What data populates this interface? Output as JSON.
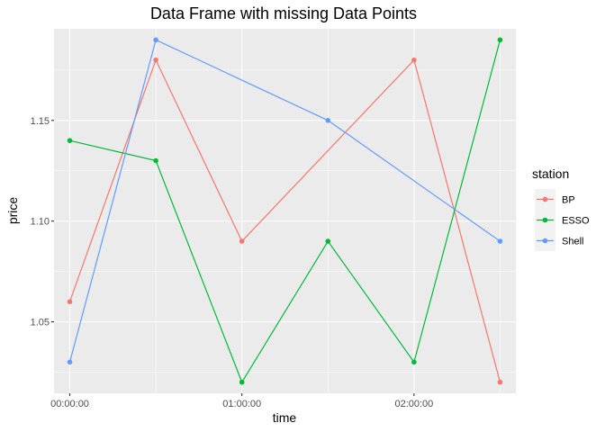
{
  "chart_data": {
    "type": "line",
    "title": "Data Frame with missing Data Points",
    "xlabel": "time",
    "ylabel": "price",
    "x_ticks": [
      "00:00:00",
      "01:00:00",
      "02:00:00"
    ],
    "x_tick_values": [
      "00:00:00",
      "01:00:00",
      "02:00:00"
    ],
    "y_ticks": [
      "1.05",
      "1.10",
      "1.15"
    ],
    "y_tick_values": [
      1.05,
      1.1,
      1.15
    ],
    "xlim": [
      "23:54:30",
      "02:35:30"
    ],
    "ylim": [
      1.0145,
      1.1955
    ],
    "grid": true,
    "legend": {
      "title": "station",
      "position": "right"
    },
    "series": [
      {
        "name": "BP",
        "color": "#F8766D",
        "points": [
          {
            "x": "00:00:00",
            "y": 1.06
          },
          {
            "x": "00:30:00",
            "y": 1.18
          },
          {
            "x": "01:00:00",
            "y": 1.09
          },
          {
            "x": "02:00:00",
            "y": 1.18
          },
          {
            "x": "02:30:00",
            "y": 1.02
          }
        ]
      },
      {
        "name": "ESSO",
        "color": "#00BA38",
        "points": [
          {
            "x": "00:00:00",
            "y": 1.14
          },
          {
            "x": "00:30:00",
            "y": 1.13
          },
          {
            "x": "01:00:00",
            "y": 1.02
          },
          {
            "x": "01:30:00",
            "y": 1.09
          },
          {
            "x": "02:00:00",
            "y": 1.03
          },
          {
            "x": "02:30:00",
            "y": 1.19
          }
        ]
      },
      {
        "name": "Shell",
        "color": "#619CFF",
        "points": [
          {
            "x": "00:00:00",
            "y": 1.03
          },
          {
            "x": "00:30:00",
            "y": 1.19
          },
          {
            "x": "01:30:00",
            "y": 1.15
          },
          {
            "x": "02:30:00",
            "y": 1.09
          }
        ]
      }
    ]
  }
}
